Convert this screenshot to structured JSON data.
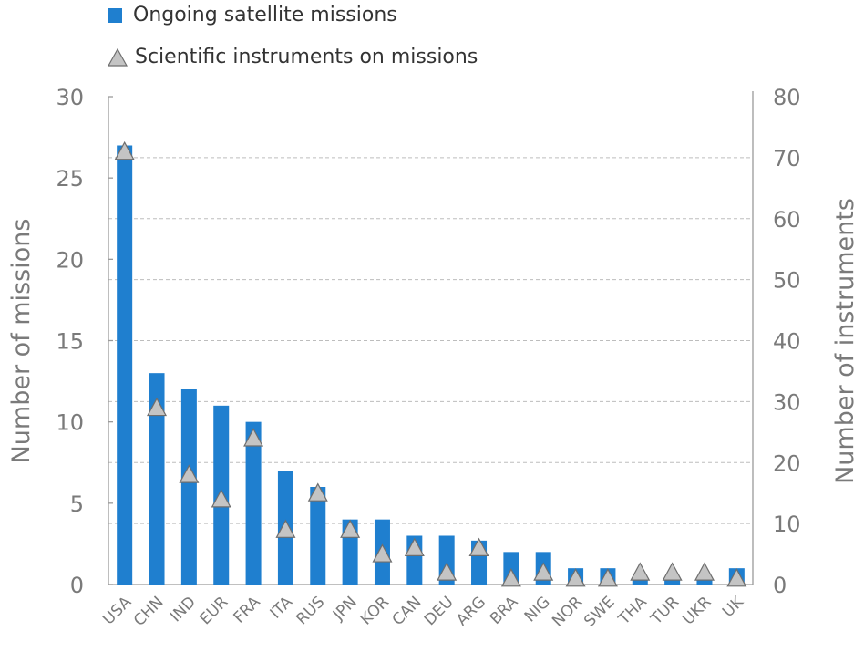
{
  "legend": {
    "missions_label": "Ongoing satellite missions",
    "instruments_label": "Scientific instruments on missions"
  },
  "colors": {
    "bar": "#1f7fcf",
    "marker_fill": "#c4c4c4",
    "marker_stroke": "#6e6e6e",
    "grid": "#bdbdbd",
    "axis": "#9a9a9a"
  },
  "chart_data": {
    "type": "bar",
    "categories": [
      "USA",
      "CHN",
      "IND",
      "EUR",
      "FRA",
      "ITA",
      "RUS",
      "JPN",
      "KOR",
      "CAN",
      "DEU",
      "ARG",
      "BRA",
      "NIG",
      "NOR",
      "SWE",
      "THA",
      "TUR",
      "UKR",
      "UK"
    ],
    "series": [
      {
        "name": "Ongoing satellite missions",
        "type": "bar",
        "axis": "left",
        "values": [
          27,
          13,
          12,
          11,
          10,
          7,
          6,
          4,
          4,
          3,
          3,
          2.7,
          2,
          2,
          1,
          1,
          0.3,
          0.3,
          0.3,
          1
        ]
      },
      {
        "name": "Scientific instruments on missions",
        "type": "scatter",
        "marker": "triangle",
        "axis": "right",
        "values": [
          71,
          29,
          18,
          14,
          24,
          9,
          15,
          9,
          5,
          6,
          2,
          6,
          1,
          2,
          1,
          1,
          2,
          2,
          2,
          1
        ]
      }
    ],
    "ylabel": "Number of missions",
    "y2label": "Number of instruments",
    "ylim": [
      0,
      30
    ],
    "y2lim": [
      0,
      80
    ],
    "yticks": [
      "0",
      "5",
      "10",
      "15",
      "20",
      "25",
      "30"
    ],
    "y2ticks": [
      "0",
      "10",
      "20",
      "30",
      "40",
      "50",
      "60",
      "70",
      "80"
    ],
    "grid": true
  }
}
